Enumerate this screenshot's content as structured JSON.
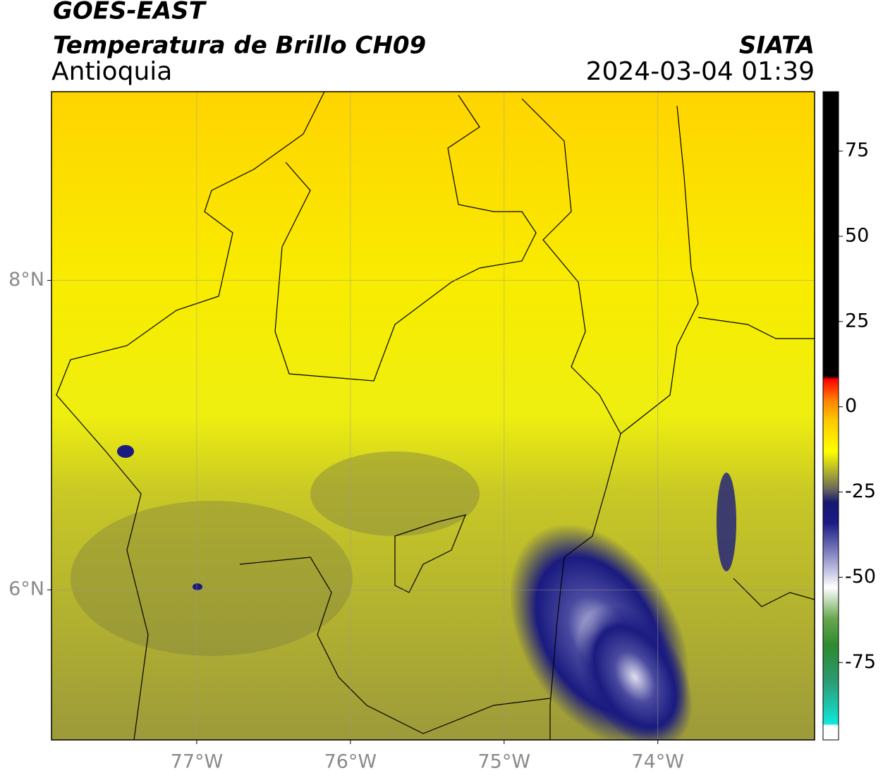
{
  "header": {
    "title": "GOES-EAST",
    "subtitle": "Temperatura de Brillo CH09",
    "region": "Antioquia",
    "source": "SIATA",
    "timestamp": "2024-03-04 01:39"
  },
  "map": {
    "xlim": [
      -77.945,
      -72.98
    ],
    "ylim": [
      5.03,
      9.22
    ],
    "xticks": [
      {
        "value": -77,
        "label": "77°W"
      },
      {
        "value": -76,
        "label": "76°W"
      },
      {
        "value": -75,
        "label": "75°W"
      },
      {
        "value": -74,
        "label": "74°W"
      }
    ],
    "yticks": [
      {
        "value": 8,
        "label": "8°N"
      },
      {
        "value": 6,
        "label": "6°N"
      }
    ],
    "grid": true
  },
  "colorbar": {
    "lim": [
      -97.7,
      92.4
    ],
    "ticks": [
      75,
      50,
      25,
      0,
      -25,
      -50,
      -75
    ],
    "colormap": [
      {
        "value": -97.7,
        "color": "#ffffff"
      },
      {
        "value": -93.5,
        "color": "#ffffff"
      },
      {
        "value": -93,
        "color": "#10e8dc"
      },
      {
        "value": -88,
        "color": "#1cc8b0"
      },
      {
        "value": -80,
        "color": "#2a9a70"
      },
      {
        "value": -70,
        "color": "#2e8a2e"
      },
      {
        "value": -62,
        "color": "#6aa850"
      },
      {
        "value": -53,
        "color": "#ffffff"
      },
      {
        "value": -44,
        "color": "#9090c8"
      },
      {
        "value": -34,
        "color": "#1a1a86"
      },
      {
        "value": -28,
        "color": "#181870"
      },
      {
        "value": -24,
        "color": "#6a6a5a"
      },
      {
        "value": -19,
        "color": "#b0b030"
      },
      {
        "value": -13,
        "color": "#ffff00"
      },
      {
        "value": -4,
        "color": "#ffc800"
      },
      {
        "value": 2,
        "color": "#ff8000"
      },
      {
        "value": 8,
        "color": "#ff0000"
      },
      {
        "value": 9,
        "color": "#000000"
      },
      {
        "value": 92.4,
        "color": "#000000"
      }
    ]
  }
}
